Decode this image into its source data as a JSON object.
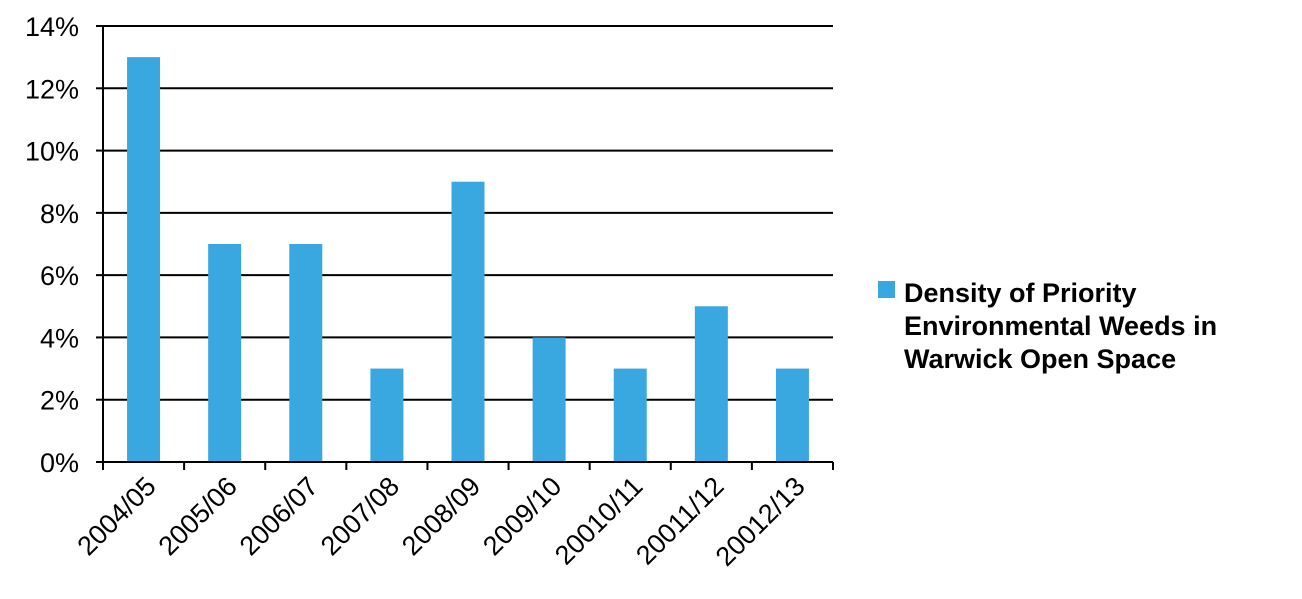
{
  "chart_data": {
    "type": "bar",
    "categories": [
      "2004/05",
      "2005/06",
      "2006/07",
      "2007/08",
      "2008/09",
      "2009/10",
      "20010/11",
      "20011/12",
      "20012/13"
    ],
    "series": [
      {
        "name": "Density of Priority Environmental Weeds in Warwick Open Space",
        "values": [
          13,
          7,
          7,
          3,
          9,
          4,
          3,
          5,
          3
        ],
        "color": "#3aa8e0"
      }
    ],
    "ylim": [
      0,
      14
    ],
    "yticks": [
      0,
      2,
      4,
      6,
      8,
      10,
      12,
      14
    ],
    "ytick_labels": [
      "0%",
      "2%",
      "4%",
      "6%",
      "8%",
      "10%",
      "12%",
      "14%"
    ],
    "grid": true,
    "legend_position": "right"
  }
}
